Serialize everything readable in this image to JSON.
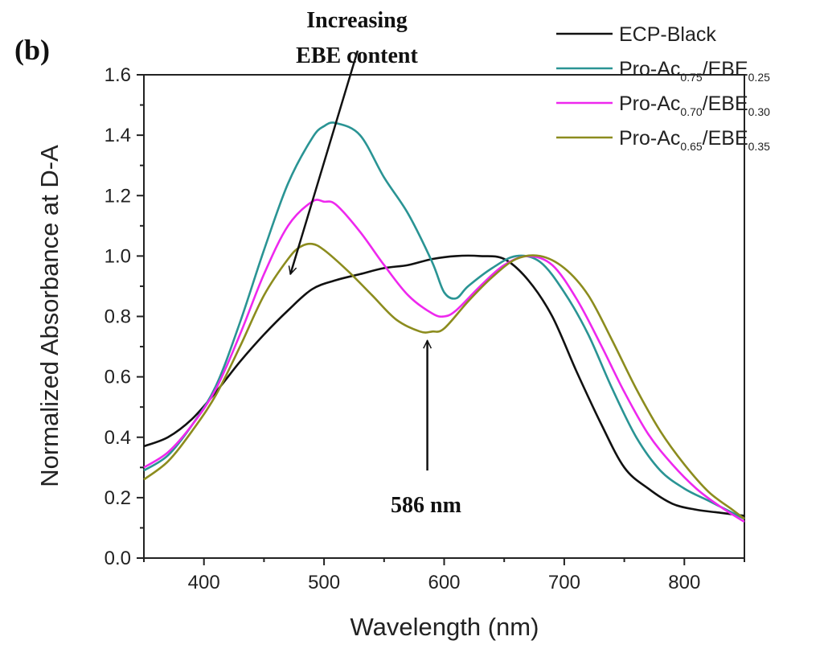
{
  "chart_data": {
    "type": "line",
    "panel_label": "(b)",
    "xlabel": "Wavelength (nm)",
    "ylabel": "Normalized Absorbance at D-A",
    "xlim": [
      350,
      850
    ],
    "ylim": [
      0.0,
      1.6
    ],
    "x_ticks": [
      400,
      500,
      600,
      700,
      800
    ],
    "y_ticks": [
      "0.0",
      "0.2",
      "0.4",
      "0.6",
      "0.8",
      "1.0",
      "1.2",
      "1.4",
      "1.6"
    ],
    "legend_position": "top-right",
    "grid": false,
    "series": [
      {
        "name": "ECP-Black",
        "legend_main": "ECP-Black",
        "legend_parts": [],
        "color": "#111111",
        "points": [
          [
            350,
            0.37
          ],
          [
            370,
            0.4
          ],
          [
            390,
            0.46
          ],
          [
            410,
            0.55
          ],
          [
            430,
            0.65
          ],
          [
            450,
            0.74
          ],
          [
            470,
            0.82
          ],
          [
            490,
            0.89
          ],
          [
            510,
            0.92
          ],
          [
            530,
            0.94
          ],
          [
            550,
            0.96
          ],
          [
            570,
            0.97
          ],
          [
            590,
            0.99
          ],
          [
            610,
            1.0
          ],
          [
            630,
            1.0
          ],
          [
            650,
            0.99
          ],
          [
            670,
            0.92
          ],
          [
            690,
            0.8
          ],
          [
            710,
            0.62
          ],
          [
            730,
            0.45
          ],
          [
            750,
            0.3
          ],
          [
            770,
            0.23
          ],
          [
            790,
            0.18
          ],
          [
            810,
            0.16
          ],
          [
            830,
            0.15
          ],
          [
            850,
            0.14
          ]
        ]
      },
      {
        "name": "Pro-Ac0.75/EBE0.25",
        "legend_main": "Pro-Ac",
        "legend_parts": [
          "0.75",
          "/EBE",
          "0.25"
        ],
        "color": "#2a9494",
        "points": [
          [
            350,
            0.29
          ],
          [
            370,
            0.34
          ],
          [
            390,
            0.44
          ],
          [
            410,
            0.57
          ],
          [
            430,
            0.78
          ],
          [
            450,
            1.02
          ],
          [
            470,
            1.24
          ],
          [
            490,
            1.39
          ],
          [
            500,
            1.43
          ],
          [
            510,
            1.44
          ],
          [
            530,
            1.4
          ],
          [
            550,
            1.26
          ],
          [
            570,
            1.14
          ],
          [
            590,
            0.98
          ],
          [
            600,
            0.88
          ],
          [
            610,
            0.86
          ],
          [
            620,
            0.9
          ],
          [
            640,
            0.96
          ],
          [
            660,
            1.0
          ],
          [
            680,
            0.98
          ],
          [
            700,
            0.88
          ],
          [
            720,
            0.74
          ],
          [
            740,
            0.56
          ],
          [
            760,
            0.4
          ],
          [
            780,
            0.29
          ],
          [
            800,
            0.23
          ],
          [
            820,
            0.19
          ],
          [
            840,
            0.15
          ],
          [
            850,
            0.13
          ]
        ]
      },
      {
        "name": "Pro-Ac0.70/EBE0.30",
        "legend_main": "Pro-Ac",
        "legend_parts": [
          "0.70",
          "/EBE",
          "0.30"
        ],
        "color": "#ee28ee",
        "points": [
          [
            350,
            0.3
          ],
          [
            370,
            0.35
          ],
          [
            390,
            0.44
          ],
          [
            410,
            0.56
          ],
          [
            430,
            0.74
          ],
          [
            450,
            0.94
          ],
          [
            470,
            1.1
          ],
          [
            490,
            1.18
          ],
          [
            500,
            1.18
          ],
          [
            510,
            1.17
          ],
          [
            530,
            1.08
          ],
          [
            550,
            0.97
          ],
          [
            570,
            0.87
          ],
          [
            590,
            0.81
          ],
          [
            600,
            0.8
          ],
          [
            610,
            0.82
          ],
          [
            630,
            0.9
          ],
          [
            650,
            0.97
          ],
          [
            670,
            1.0
          ],
          [
            690,
            0.97
          ],
          [
            710,
            0.86
          ],
          [
            730,
            0.71
          ],
          [
            750,
            0.55
          ],
          [
            770,
            0.41
          ],
          [
            790,
            0.31
          ],
          [
            810,
            0.23
          ],
          [
            830,
            0.17
          ],
          [
            850,
            0.12
          ]
        ]
      },
      {
        "name": "Pro-Ac0.65/EBE0.35",
        "legend_main": "Pro-Ac",
        "legend_parts": [
          "0.65",
          "/EBE",
          "0.35"
        ],
        "color": "#8c8c1e",
        "points": [
          [
            350,
            0.26
          ],
          [
            370,
            0.32
          ],
          [
            390,
            0.42
          ],
          [
            410,
            0.54
          ],
          [
            430,
            0.7
          ],
          [
            450,
            0.87
          ],
          [
            470,
            0.99
          ],
          [
            480,
            1.03
          ],
          [
            490,
            1.04
          ],
          [
            500,
            1.02
          ],
          [
            520,
            0.95
          ],
          [
            540,
            0.87
          ],
          [
            560,
            0.79
          ],
          [
            580,
            0.75
          ],
          [
            590,
            0.75
          ],
          [
            600,
            0.76
          ],
          [
            620,
            0.85
          ],
          [
            640,
            0.93
          ],
          [
            660,
            0.99
          ],
          [
            680,
            1.0
          ],
          [
            700,
            0.96
          ],
          [
            720,
            0.87
          ],
          [
            740,
            0.72
          ],
          [
            760,
            0.56
          ],
          [
            780,
            0.42
          ],
          [
            800,
            0.31
          ],
          [
            820,
            0.22
          ],
          [
            840,
            0.16
          ],
          [
            850,
            0.13
          ]
        ]
      }
    ],
    "annotations": [
      {
        "text_lines": [
          "Increasing",
          "EBE content"
        ],
        "arrow_from": [
          528,
          1.68
        ],
        "arrow_to": [
          472,
          0.94
        ]
      },
      {
        "text": "586 nm",
        "arrow_from": [
          586,
          0.29
        ],
        "arrow_to": [
          586,
          0.72
        ]
      }
    ]
  }
}
